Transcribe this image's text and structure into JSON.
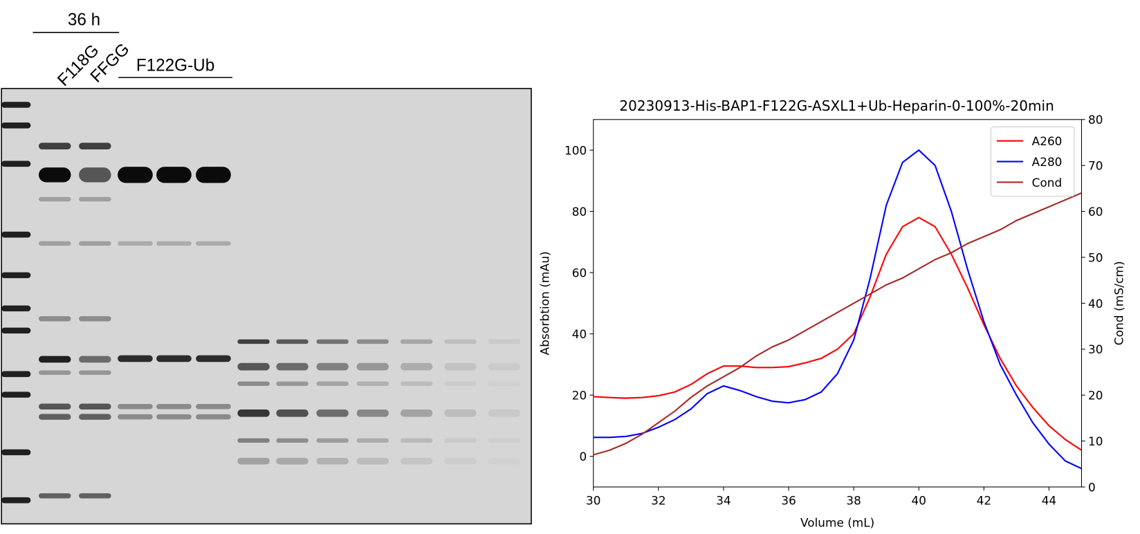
{
  "gel": {
    "time_label": "36 h",
    "lane_labels": [
      "F118G",
      "FFGG"
    ],
    "group_label": "F122G-Ub"
  },
  "chart_data": {
    "type": "line",
    "title": "20230913-His-BAP1-F122G-ASXL1+Ub-Heparin-0-100%-20min",
    "x_label": "Volume (mL)",
    "y_label": "Absorbtion (mAu)",
    "y2_label": "Cond (mS/cm)",
    "x": [
      30,
      30.5,
      31,
      31.5,
      32,
      32.5,
      33,
      33.5,
      34,
      34.5,
      35,
      35.5,
      36,
      36.5,
      37,
      37.5,
      38,
      38.5,
      39,
      39.5,
      40,
      40.5,
      41,
      41.5,
      42,
      42.5,
      43,
      43.5,
      44,
      44.5,
      45
    ],
    "xlim": [
      30,
      45
    ],
    "xticks": [
      30,
      32,
      34,
      36,
      38,
      40,
      42,
      44
    ],
    "ylim": [
      -10,
      110
    ],
    "yticks": [
      0,
      20,
      40,
      60,
      80,
      100
    ],
    "y2lim": [
      0,
      80
    ],
    "y2ticks": [
      0,
      10,
      20,
      30,
      40,
      50,
      60,
      70,
      80
    ],
    "legend": "upper right",
    "grid": false,
    "series": [
      {
        "name": "A260",
        "color": "#ff0000",
        "values": [
          19.5,
          19.2,
          19,
          19.2,
          19.8,
          21,
          23.5,
          27,
          29.5,
          29.5,
          29,
          29,
          29.3,
          30.5,
          32,
          35,
          40,
          52,
          66,
          75,
          78,
          75,
          66,
          55,
          43,
          32,
          23,
          16,
          10,
          5.5,
          2
        ]
      },
      {
        "name": "A280",
        "color": "#0000ff",
        "values": [
          6.2,
          6.2,
          6.5,
          7.5,
          9.5,
          12,
          15.5,
          20.5,
          23,
          21.5,
          19.5,
          18,
          17.5,
          18.5,
          21,
          27,
          38,
          58,
          82,
          96,
          100,
          95,
          80,
          61,
          44,
          30,
          20,
          11,
          4,
          -1.5,
          -4
        ]
      },
      {
        "name": "Cond",
        "color": "#a52a2a",
        "axis": "y2",
        "values": [
          7,
          8,
          9.5,
          11.5,
          14,
          16.5,
          19.5,
          22,
          24,
          26,
          28.5,
          30.5,
          32,
          34,
          36,
          38,
          40,
          42,
          44,
          45.5,
          47.5,
          49.5,
          51,
          53,
          54.5,
          56,
          58,
          59.5,
          61,
          62.5,
          64
        ]
      }
    ]
  }
}
